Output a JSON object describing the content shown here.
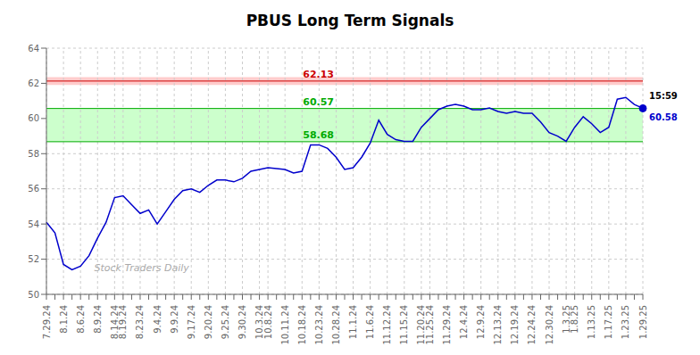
{
  "chart_data": {
    "type": "line",
    "title": "PBUS Long Term Signals",
    "watermark": "Stock Traders Daily",
    "color": "#0000cc",
    "grid": true,
    "ylim": [
      50,
      64
    ],
    "yticks": [
      50,
      52,
      54,
      56,
      58,
      60,
      62,
      64
    ],
    "categories": [
      "7.29.24",
      null,
      "8.1.24",
      null,
      "8.6.24",
      null,
      "8.9.24",
      null,
      "8.14.24",
      "8.19.24",
      null,
      "8.23.24",
      null,
      "9.4.24",
      null,
      "9.9.24",
      null,
      "9.17.24",
      null,
      "9.20.24",
      null,
      "9.25.24",
      null,
      "9.30.24",
      null,
      "10.3.24",
      "10.8.24",
      null,
      "10.11.24",
      null,
      "10.18.24",
      null,
      "10.23.24",
      null,
      "10.28.24",
      null,
      "11.1.24",
      null,
      "11.6.24",
      null,
      "11.12.24",
      null,
      "11.15.24",
      null,
      "11.20.24",
      "11.25.24",
      null,
      "11.29.24",
      null,
      "12.4.24",
      null,
      "12.9.24",
      null,
      "12.13.24",
      null,
      "12.19.24",
      null,
      "12.24.24",
      null,
      "12.30.24",
      null,
      "1.3.25",
      "1.8.25",
      null,
      "1.13.25",
      null,
      "1.17.25",
      null,
      "1.23.25",
      null,
      "1.29.25"
    ],
    "values": [
      54.1,
      53.5,
      51.7,
      51.4,
      51.6,
      52.2,
      53.2,
      54.1,
      55.5,
      55.6,
      55.1,
      54.6,
      54.8,
      54.0,
      54.7,
      55.4,
      55.9,
      56.0,
      55.8,
      56.2,
      56.5,
      56.5,
      56.4,
      56.6,
      57.0,
      57.1,
      57.2,
      57.15,
      57.1,
      56.9,
      57.0,
      58.5,
      58.5,
      58.3,
      57.8,
      57.1,
      57.2,
      57.8,
      58.6,
      59.9,
      59.1,
      58.8,
      58.7,
      58.7,
      59.5,
      60.0,
      60.5,
      60.7,
      60.8,
      60.7,
      60.5,
      60.5,
      60.6,
      60.4,
      60.3,
      60.4,
      60.3,
      60.3,
      59.8,
      59.2,
      59.0,
      58.7,
      59.5,
      60.1,
      59.7,
      59.2,
      59.5,
      61.1,
      61.2,
      60.8,
      60.58
    ],
    "bands": [
      {
        "range": [
          61.91,
          62.35
        ],
        "color": "#ffcccc"
      },
      {
        "range": [
          58.68,
          60.57
        ],
        "color": "#ccffcc"
      }
    ],
    "reference_lines": [
      {
        "value": 62.13,
        "color": "#cc0000"
      },
      {
        "value": 60.57,
        "color": "#00aa00"
      },
      {
        "value": 58.68,
        "color": "#00aa00"
      }
    ],
    "last_point": {
      "time": "15:59",
      "value": 60.58
    }
  }
}
